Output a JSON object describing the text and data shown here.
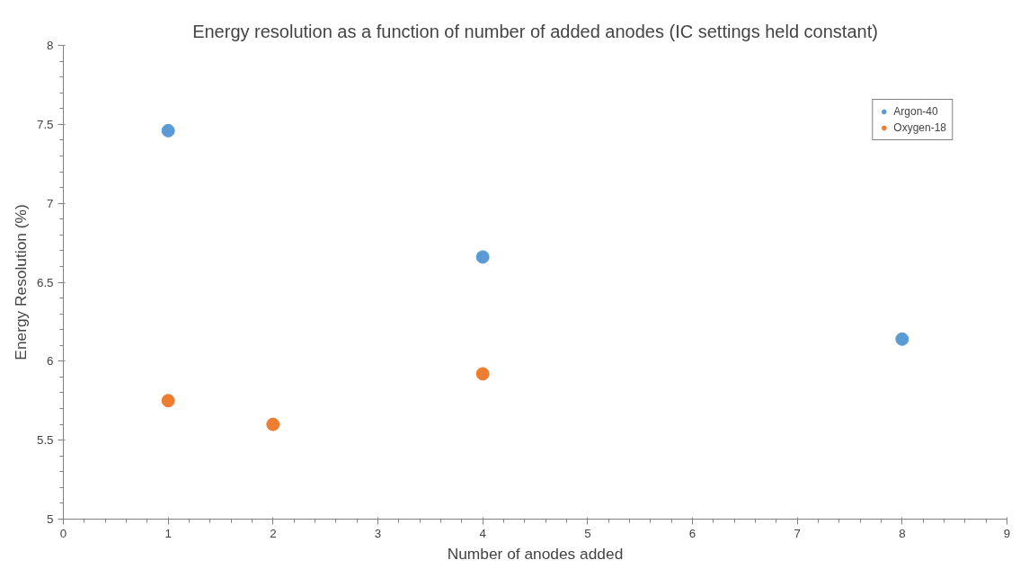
{
  "chart_data": {
    "type": "scatter",
    "title": "Energy resolution as a function of number of added anodes (IC settings held constant)",
    "xlabel": "Number of anodes added",
    "ylabel": "Energy Resolution (%)",
    "series": [
      {
        "name": "Argon-40",
        "color": "#5b9bd5",
        "x": [
          1,
          4,
          8
        ],
        "values": [
          7.46,
          6.66,
          6.14
        ]
      },
      {
        "name": "Oxygen-18",
        "color": "#ed7d31",
        "x": [
          1,
          2,
          4
        ],
        "values": [
          5.75,
          5.6,
          5.92
        ]
      }
    ],
    "xlim": [
      0,
      9
    ],
    "xticks": [
      0,
      1,
      2,
      3,
      4,
      5,
      6,
      7,
      8,
      9
    ],
    "ylim": [
      5,
      8
    ],
    "yticks": [
      5,
      5.5,
      6,
      6.5,
      7,
      7.5,
      8
    ],
    "grid": false,
    "legend": "top right",
    "marker": "circle"
  }
}
